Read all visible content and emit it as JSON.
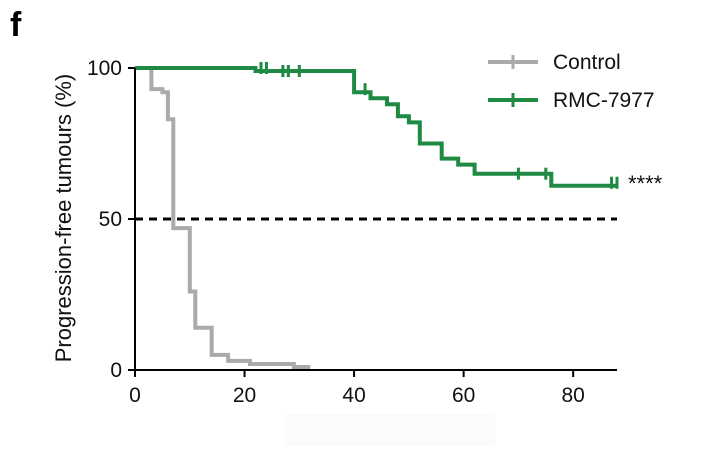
{
  "panel_label": "f",
  "chart_data": {
    "type": "line",
    "subtype": "kaplan-meier step",
    "title": "",
    "xlabel": "",
    "ylabel": "Progression-free tumours (%)",
    "xlim": [
      0,
      88
    ],
    "ylim": [
      0,
      100
    ],
    "xticks": [
      0,
      20,
      40,
      60,
      80
    ],
    "yticks": [
      0,
      50,
      100
    ],
    "reference_line": {
      "y": 50,
      "style": "dashed",
      "color": "#000000"
    },
    "significance": "****",
    "legend_position": "top-right",
    "series": [
      {
        "name": "Control",
        "color": "#aaaaaa",
        "steps": [
          [
            0,
            100
          ],
          [
            3,
            100
          ],
          [
            3,
            93
          ],
          [
            5,
            93
          ],
          [
            5,
            92
          ],
          [
            6,
            92
          ],
          [
            6,
            83
          ],
          [
            7,
            83
          ],
          [
            7,
            47
          ],
          [
            10,
            47
          ],
          [
            10,
            26
          ],
          [
            11,
            26
          ],
          [
            11,
            14
          ],
          [
            14,
            14
          ],
          [
            14,
            5
          ],
          [
            17,
            5
          ],
          [
            17,
            3
          ],
          [
            21,
            3
          ],
          [
            21,
            2
          ],
          [
            29,
            2
          ],
          [
            29,
            1
          ],
          [
            32,
            1
          ]
        ],
        "censored": []
      },
      {
        "name": "RMC-7977",
        "color": "#1e8a44",
        "steps": [
          [
            0,
            100
          ],
          [
            22,
            100
          ],
          [
            22,
            99
          ],
          [
            40,
            99
          ],
          [
            40,
            92
          ],
          [
            43,
            92
          ],
          [
            43,
            90
          ],
          [
            46,
            90
          ],
          [
            46,
            88
          ],
          [
            48,
            88
          ],
          [
            48,
            84
          ],
          [
            50,
            84
          ],
          [
            50,
            82
          ],
          [
            52,
            82
          ],
          [
            52,
            75
          ],
          [
            56,
            75
          ],
          [
            56,
            70
          ],
          [
            59,
            70
          ],
          [
            59,
            68
          ],
          [
            62,
            68
          ],
          [
            62,
            65
          ],
          [
            76,
            65
          ],
          [
            76,
            61
          ],
          [
            88,
            61
          ]
        ],
        "censored": [
          [
            23,
            100
          ],
          [
            24,
            100
          ],
          [
            27,
            99
          ],
          [
            28,
            99
          ],
          [
            30,
            99
          ],
          [
            42,
            93
          ],
          [
            70,
            65
          ],
          [
            75,
            65
          ],
          [
            87,
            62
          ],
          [
            88,
            62
          ]
        ]
      }
    ]
  }
}
